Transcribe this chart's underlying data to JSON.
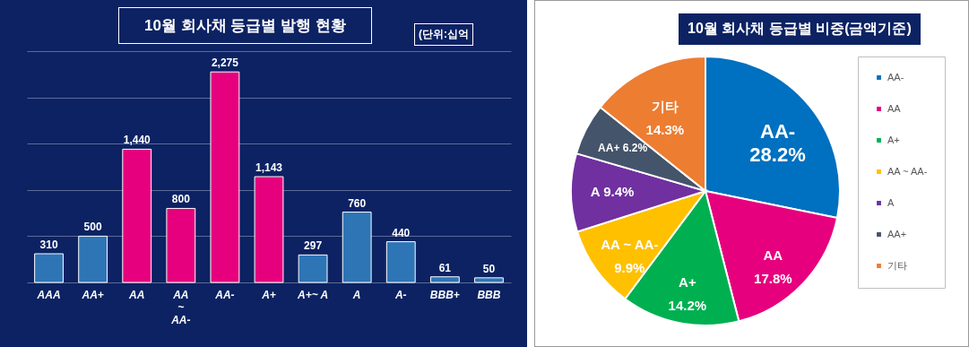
{
  "chart_data": [
    {
      "type": "bar",
      "title": "10월 회사채 등급별 발행 현황",
      "annotations": [
        "(단위:십억"
      ],
      "categories": [
        "AAA",
        "AA+",
        "AA",
        "AA ~ AA-",
        "AA-",
        "A+",
        "A+~ A",
        "A",
        "A-",
        "BBB+",
        "BBB"
      ],
      "values": [
        310,
        500,
        1440,
        800,
        2275,
        1143,
        297,
        760,
        440,
        61,
        50
      ],
      "value_labels": [
        "310",
        "500",
        "1,440",
        "800",
        "2,275",
        "1,143",
        "297",
        "760",
        "440",
        "61",
        "50"
      ],
      "colors": [
        "#2e75b6",
        "#2e75b6",
        "#e6007e",
        "#e6007e",
        "#e6007e",
        "#e6007e",
        "#2e75b6",
        "#2e75b6",
        "#2e75b6",
        "#2e75b6",
        "#2e75b6"
      ],
      "ylim": [
        0,
        2500
      ],
      "yticks": [
        0,
        500,
        1000,
        1500,
        2000,
        2500
      ],
      "grid": "y",
      "tick_labels": "x"
    },
    {
      "type": "pie",
      "title": "10월 회사채 등급별 비중(금액기준)",
      "categories": [
        "AA-",
        "AA",
        "A+",
        "AA ~ AA-",
        "A",
        "AA+",
        "기타"
      ],
      "values": [
        28.2,
        17.8,
        14.2,
        9.9,
        9.4,
        6.2,
        14.3
      ],
      "value_labels": [
        "28.2%",
        "17.8%",
        "14.2%",
        "9.9%",
        "9.4%",
        "6.2%",
        "14.3%"
      ],
      "colors": [
        "#0070c0",
        "#e6007e",
        "#00b050",
        "#ffc000",
        "#7030a0",
        "#44546a",
        "#ed7d31"
      ],
      "legend": "right"
    }
  ]
}
